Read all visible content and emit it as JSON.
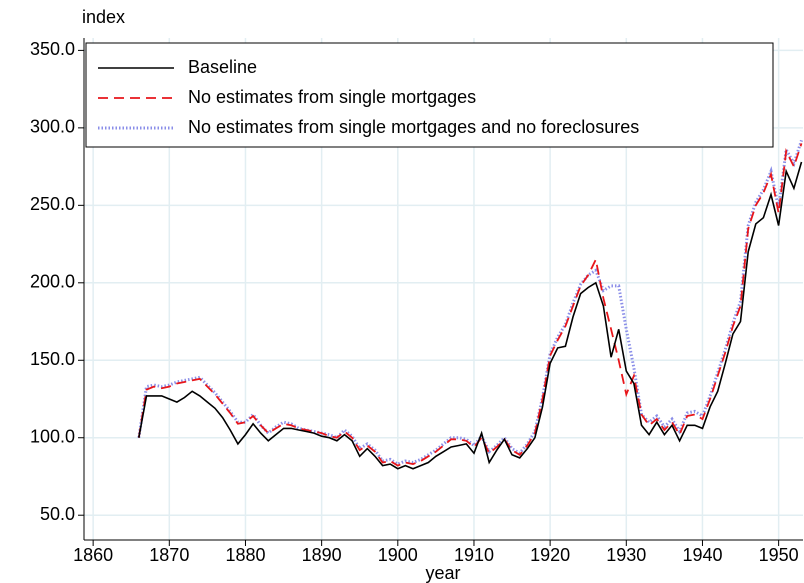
{
  "chart_data": {
    "type": "line",
    "y_axis_title": "index",
    "x_axis_title": "year",
    "x": [
      1866,
      1867,
      1868,
      1869,
      1870,
      1871,
      1872,
      1873,
      1874,
      1875,
      1876,
      1877,
      1878,
      1879,
      1880,
      1881,
      1882,
      1883,
      1884,
      1885,
      1886,
      1887,
      1888,
      1889,
      1890,
      1891,
      1892,
      1893,
      1894,
      1895,
      1896,
      1897,
      1898,
      1899,
      1900,
      1901,
      1902,
      1903,
      1904,
      1905,
      1906,
      1907,
      1908,
      1909,
      1910,
      1911,
      1912,
      1913,
      1914,
      1915,
      1916,
      1917,
      1918,
      1919,
      1920,
      1921,
      1922,
      1923,
      1924,
      1925,
      1926,
      1927,
      1928,
      1929,
      1930,
      1931,
      1932,
      1933,
      1934,
      1935,
      1936,
      1937,
      1938,
      1939,
      1940,
      1941,
      1942,
      1943,
      1944,
      1945,
      1946,
      1947,
      1948,
      1949,
      1950,
      1951,
      1952,
      1953
    ],
    "series": [
      {
        "name": "Baseline",
        "color": "#000000",
        "dash": "solid",
        "values": [
          100,
          127,
          127,
          127,
          125,
          123,
          126,
          130,
          127,
          123,
          119,
          113,
          105,
          96,
          102,
          109,
          103,
          98,
          102,
          106,
          106,
          105,
          104,
          103,
          101,
          100,
          98,
          102,
          98,
          88,
          93,
          88,
          82,
          83,
          80,
          82,
          80,
          82,
          84,
          88,
          91,
          94,
          95,
          96,
          90,
          103,
          84,
          92,
          99,
          89,
          87,
          93,
          100,
          120,
          148,
          158,
          159,
          178,
          193,
          197,
          200,
          185,
          152,
          170,
          143,
          135,
          108,
          102,
          110,
          102,
          108,
          98,
          108,
          108,
          106,
          120,
          130,
          148,
          167,
          175,
          220,
          238,
          242,
          257,
          237,
          272,
          261,
          278
        ]
      },
      {
        "name": "No estimates from single mortgages",
        "color": "#e8161b",
        "dash": "dashed",
        "values": [
          100,
          131,
          133,
          132,
          133,
          135,
          136,
          137,
          138,
          133,
          128,
          122,
          116,
          109,
          110,
          114,
          108,
          103,
          106,
          109,
          108,
          106,
          105,
          104,
          103,
          101,
          100,
          104,
          100,
          92,
          95,
          91,
          84,
          85,
          82,
          84,
          83,
          85,
          88,
          91,
          95,
          99,
          99,
          98,
          94,
          100,
          90,
          94,
          99,
          92,
          89,
          95,
          103,
          125,
          153,
          163,
          172,
          185,
          198,
          205,
          215,
          190,
          170,
          150,
          128,
          140,
          115,
          108,
          112,
          105,
          110,
          102,
          114,
          115,
          112,
          125,
          140,
          155,
          172,
          185,
          235,
          250,
          258,
          270,
          245,
          285,
          275,
          290
        ]
      },
      {
        "name": "No estimates from single mortgages and no foreclosures",
        "color": "#8a8ee8",
        "dash": "dotted",
        "values": [
          100,
          133,
          134,
          133,
          134,
          136,
          137,
          138,
          139,
          134,
          129,
          123,
          117,
          110,
          110,
          115,
          108,
          103,
          107,
          110,
          109,
          106,
          105,
          104,
          103,
          102,
          100,
          105,
          101,
          93,
          96,
          92,
          85,
          86,
          83,
          85,
          84,
          86,
          89,
          92,
          96,
          100,
          100,
          99,
          95,
          101,
          91,
          95,
          100,
          93,
          90,
          96,
          104,
          126,
          154,
          165,
          173,
          187,
          199,
          205,
          208,
          195,
          198,
          198,
          170,
          145,
          115,
          110,
          114,
          107,
          112,
          104,
          116,
          117,
          114,
          127,
          142,
          157,
          174,
          188,
          237,
          252,
          260,
          272,
          248,
          286,
          277,
          292
        ]
      }
    ],
    "xlim": [
      1858.8,
      1953.2
    ],
    "ylim": [
      34,
      358
    ],
    "xticks": [
      1860,
      1870,
      1880,
      1890,
      1900,
      1910,
      1920,
      1930,
      1940,
      1950
    ],
    "yticks": [
      {
        "value": 50,
        "label": "50.0"
      },
      {
        "value": 100,
        "label": "100.0"
      },
      {
        "value": 150,
        "label": "150.0"
      },
      {
        "value": 200,
        "label": "200.0"
      },
      {
        "value": 250,
        "label": "250.0"
      },
      {
        "value": 300,
        "label": "300.0"
      },
      {
        "value": 350,
        "label": "350.0"
      }
    ],
    "grid": true,
    "legend_position": "top-left"
  }
}
